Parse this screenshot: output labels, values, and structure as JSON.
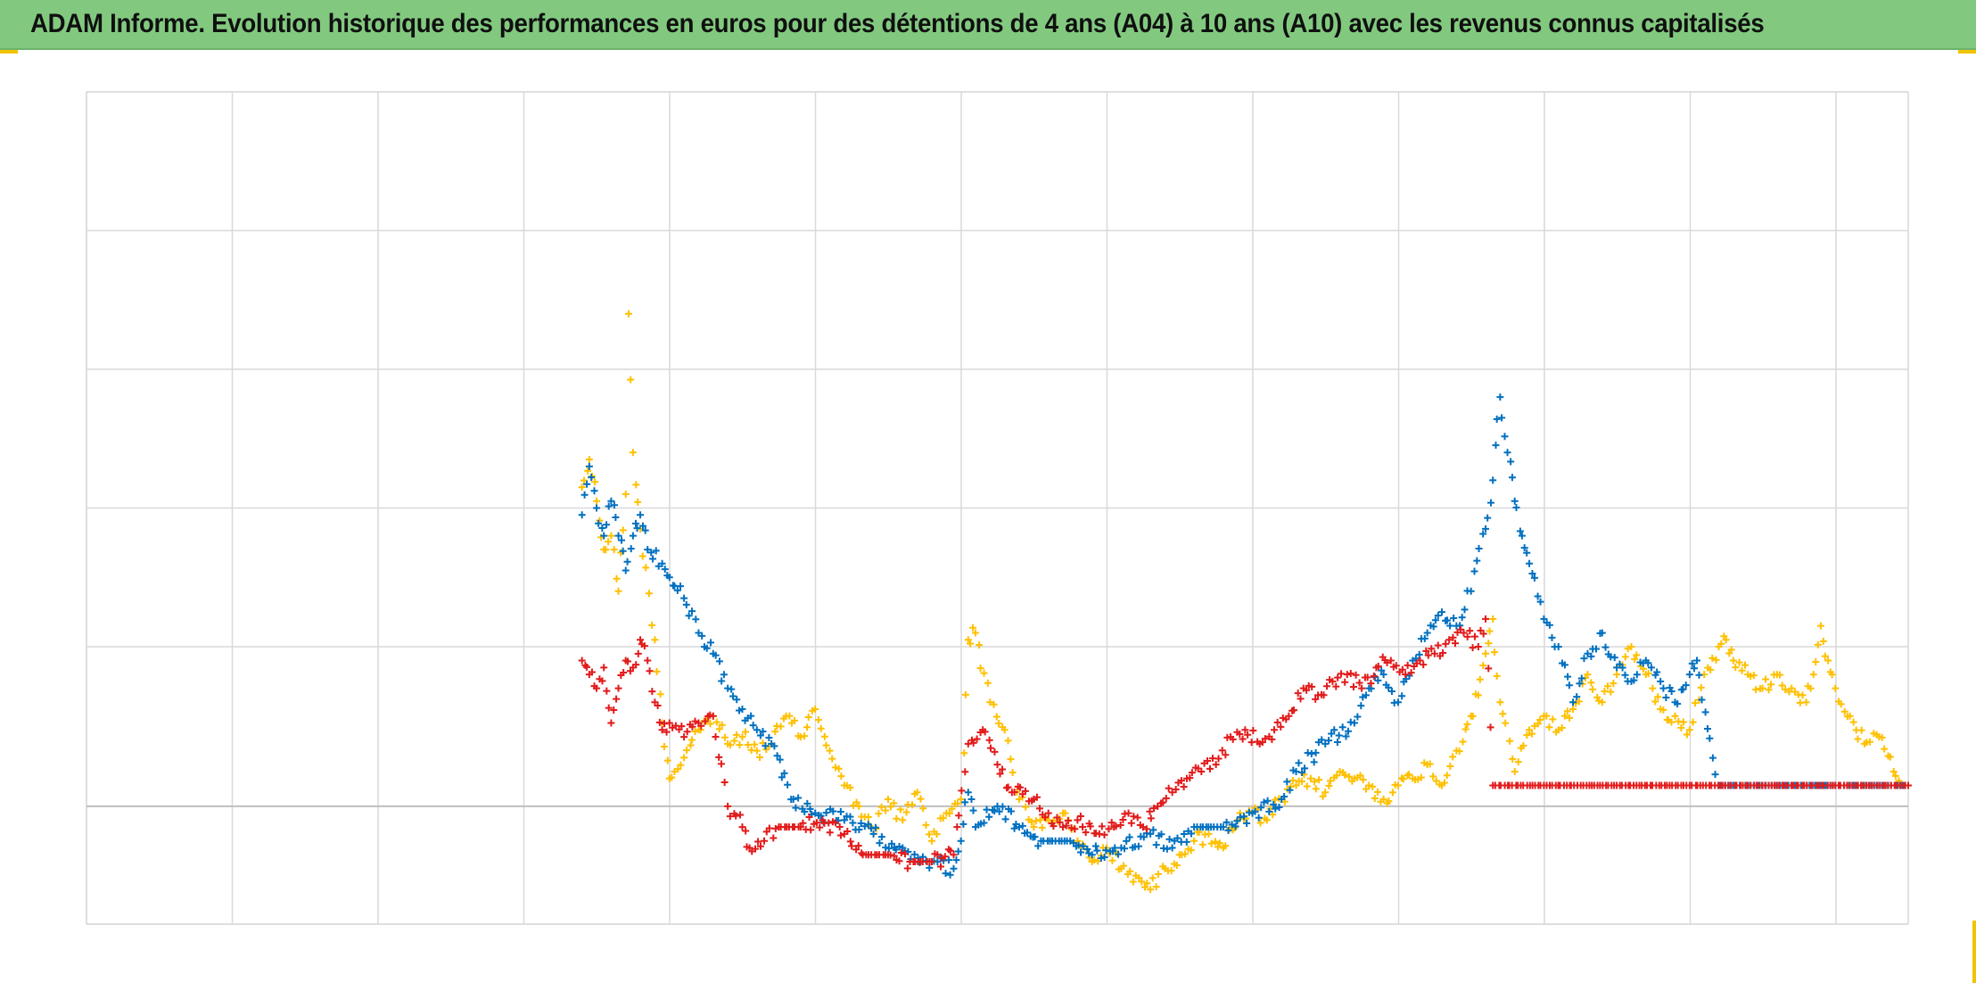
{
  "title": "ADAM Informe. Evolution historique des performances en euros pour des détentions de 4 ans (A04) à 10 ans (A10) avec les revenus connus capitalisés",
  "colors": {
    "header_bg": "#82c97f",
    "grid": "#d9d9d9",
    "axis": "#bfbfbf",
    "corner_marks": "#f2c300"
  },
  "chart_data": {
    "type": "scatter",
    "marker": "plus",
    "grid": true,
    "tick_labels_shown": false,
    "legend": "none",
    "x_gridlines": 13,
    "xlim": [
      0,
      12.5
    ],
    "y_gridlines": [
      -0.85,
      0,
      1.15,
      2.15,
      3.15,
      4.15,
      5.15
    ],
    "ylim": [
      -0.85,
      5.15
    ],
    "series": [
      {
        "color": "#0070c0",
        "points": [
          [
            3.4,
            2.1
          ],
          [
            3.45,
            2.45
          ],
          [
            3.5,
            2.15
          ],
          [
            3.55,
            1.95
          ],
          [
            3.6,
            2.2
          ],
          [
            3.65,
            1.95
          ],
          [
            3.7,
            1.7
          ],
          [
            3.75,
            1.95
          ],
          [
            3.8,
            2.1
          ],
          [
            3.85,
            1.85
          ],
          [
            3.95,
            1.75
          ],
          [
            4.0,
            1.65
          ],
          [
            4.1,
            1.5
          ],
          [
            4.2,
            1.25
          ],
          [
            4.3,
            1.1
          ],
          [
            4.4,
            0.85
          ],
          [
            4.5,
            0.7
          ],
          [
            4.6,
            0.55
          ],
          [
            4.7,
            0.45
          ],
          [
            4.85,
            0.05
          ],
          [
            5.0,
            -0.05
          ],
          [
            5.2,
            -0.1
          ],
          [
            5.4,
            -0.2
          ],
          [
            5.6,
            -0.3
          ],
          [
            5.8,
            -0.4
          ],
          [
            5.95,
            -0.45
          ],
          [
            6.0,
            -0.25
          ],
          [
            6.05,
            0.1
          ],
          [
            6.1,
            -0.15
          ],
          [
            6.25,
            0.0
          ],
          [
            6.4,
            -0.15
          ],
          [
            6.55,
            -0.25
          ],
          [
            6.75,
            -0.25
          ],
          [
            6.9,
            -0.35
          ],
          [
            7.1,
            -0.3
          ],
          [
            7.3,
            -0.2
          ],
          [
            7.45,
            -0.3
          ],
          [
            7.6,
            -0.15
          ],
          [
            7.8,
            -0.15
          ],
          [
            8.0,
            -0.05
          ],
          [
            8.2,
            0.05
          ],
          [
            8.3,
            0.25
          ],
          [
            8.5,
            0.45
          ],
          [
            8.7,
            0.6
          ],
          [
            8.8,
            0.85
          ],
          [
            8.9,
            0.95
          ],
          [
            9.0,
            0.75
          ],
          [
            9.1,
            1.05
          ],
          [
            9.2,
            1.25
          ],
          [
            9.3,
            1.4
          ],
          [
            9.4,
            1.3
          ],
          [
            9.5,
            1.55
          ],
          [
            9.6,
            2.0
          ],
          [
            9.65,
            2.35
          ],
          [
            9.7,
            2.95
          ],
          [
            9.75,
            2.55
          ],
          [
            9.8,
            2.2
          ],
          [
            9.85,
            1.95
          ],
          [
            9.9,
            1.75
          ],
          [
            10.0,
            1.35
          ],
          [
            10.1,
            1.15
          ],
          [
            10.2,
            0.75
          ],
          [
            10.3,
            1.1
          ],
          [
            10.4,
            1.25
          ],
          [
            10.5,
            1.0
          ],
          [
            10.6,
            0.9
          ],
          [
            10.7,
            1.05
          ],
          [
            10.8,
            0.9
          ],
          [
            10.9,
            0.75
          ],
          [
            11.0,
            0.95
          ],
          [
            11.05,
            1.05
          ],
          [
            11.2,
            0.15
          ],
          [
            11.6,
            0.15
          ],
          [
            12.0,
            0.15
          ],
          [
            12.5,
            0.15
          ]
        ]
      },
      {
        "color": "#ffc000",
        "points": [
          [
            3.4,
            2.3
          ],
          [
            3.45,
            2.5
          ],
          [
            3.5,
            2.2
          ],
          [
            3.55,
            1.85
          ],
          [
            3.6,
            1.95
          ],
          [
            3.65,
            1.55
          ],
          [
            3.7,
            2.25
          ],
          [
            3.72,
            3.55
          ],
          [
            3.75,
            2.55
          ],
          [
            3.8,
            2.0
          ],
          [
            3.9,
            1.2
          ],
          [
            3.95,
            0.6
          ],
          [
            4.0,
            0.2
          ],
          [
            4.1,
            0.35
          ],
          [
            4.2,
            0.55
          ],
          [
            4.3,
            0.65
          ],
          [
            4.4,
            0.45
          ],
          [
            4.5,
            0.5
          ],
          [
            4.6,
            0.4
          ],
          [
            4.7,
            0.45
          ],
          [
            4.8,
            0.65
          ],
          [
            4.9,
            0.5
          ],
          [
            5.0,
            0.7
          ],
          [
            5.1,
            0.4
          ],
          [
            5.2,
            0.15
          ],
          [
            5.3,
            0.0
          ],
          [
            5.4,
            -0.2
          ],
          [
            5.5,
            0.05
          ],
          [
            5.6,
            -0.1
          ],
          [
            5.7,
            0.1
          ],
          [
            5.8,
            -0.25
          ],
          [
            5.9,
            -0.05
          ],
          [
            6.0,
            0.05
          ],
          [
            6.05,
            1.2
          ],
          [
            6.1,
            1.25
          ],
          [
            6.2,
            0.75
          ],
          [
            6.3,
            0.55
          ],
          [
            6.4,
            0.05
          ],
          [
            6.5,
            -0.15
          ],
          [
            6.6,
            -0.1
          ],
          [
            6.7,
            -0.05
          ],
          [
            6.8,
            -0.25
          ],
          [
            6.9,
            -0.4
          ],
          [
            7.0,
            -0.3
          ],
          [
            7.1,
            -0.45
          ],
          [
            7.2,
            -0.5
          ],
          [
            7.3,
            -0.6
          ],
          [
            7.4,
            -0.45
          ],
          [
            7.5,
            -0.35
          ],
          [
            7.6,
            -0.25
          ],
          [
            7.7,
            -0.2
          ],
          [
            7.8,
            -0.3
          ],
          [
            7.9,
            -0.1
          ],
          [
            8.0,
            -0.05
          ],
          [
            8.1,
            -0.1
          ],
          [
            8.2,
            0.05
          ],
          [
            8.3,
            0.15
          ],
          [
            8.4,
            0.2
          ],
          [
            8.5,
            0.1
          ],
          [
            8.6,
            0.25
          ],
          [
            8.7,
            0.2
          ],
          [
            8.8,
            0.15
          ],
          [
            8.9,
            0.05
          ],
          [
            9.0,
            0.15
          ],
          [
            9.1,
            0.2
          ],
          [
            9.2,
            0.3
          ],
          [
            9.3,
            0.15
          ],
          [
            9.4,
            0.4
          ],
          [
            9.5,
            0.65
          ],
          [
            9.55,
            0.8
          ],
          [
            9.6,
            1.1
          ],
          [
            9.65,
            1.35
          ],
          [
            9.7,
            0.75
          ],
          [
            9.8,
            0.25
          ],
          [
            9.9,
            0.55
          ],
          [
            10.0,
            0.65
          ],
          [
            10.1,
            0.55
          ],
          [
            10.2,
            0.7
          ],
          [
            10.3,
            0.95
          ],
          [
            10.4,
            0.75
          ],
          [
            10.5,
            0.95
          ],
          [
            10.6,
            1.15
          ],
          [
            10.7,
            0.95
          ],
          [
            10.8,
            0.7
          ],
          [
            10.9,
            0.65
          ],
          [
            11.0,
            0.55
          ],
          [
            11.1,
            0.95
          ],
          [
            11.2,
            1.15
          ],
          [
            11.25,
            1.2
          ],
          [
            11.3,
            1.05
          ],
          [
            11.4,
            0.95
          ],
          [
            11.5,
            0.85
          ],
          [
            11.6,
            0.95
          ],
          [
            11.7,
            0.85
          ],
          [
            11.8,
            0.75
          ],
          [
            11.85,
            0.95
          ],
          [
            11.9,
            1.3
          ],
          [
            11.95,
            1.05
          ],
          [
            12.0,
            0.85
          ],
          [
            12.1,
            0.65
          ],
          [
            12.2,
            0.45
          ],
          [
            12.3,
            0.5
          ],
          [
            12.4,
            0.25
          ],
          [
            12.45,
            0.15
          ],
          [
            12.5,
            0.15
          ]
        ]
      },
      {
        "color": "#e21b1b",
        "points": [
          [
            3.4,
            1.05
          ],
          [
            3.45,
            0.95
          ],
          [
            3.5,
            0.85
          ],
          [
            3.55,
            1.0
          ],
          [
            3.6,
            0.6
          ],
          [
            3.65,
            0.85
          ],
          [
            3.7,
            1.05
          ],
          [
            3.75,
            1.0
          ],
          [
            3.8,
            1.2
          ],
          [
            3.85,
            1.05
          ],
          [
            3.9,
            0.75
          ],
          [
            3.95,
            0.55
          ],
          [
            4.0,
            0.6
          ],
          [
            4.1,
            0.5
          ],
          [
            4.2,
            0.6
          ],
          [
            4.3,
            0.65
          ],
          [
            4.4,
            0.0
          ],
          [
            4.5,
            -0.15
          ],
          [
            4.55,
            -0.3
          ],
          [
            4.65,
            -0.25
          ],
          [
            4.75,
            -0.15
          ],
          [
            4.9,
            -0.15
          ],
          [
            5.05,
            -0.1
          ],
          [
            5.2,
            -0.2
          ],
          [
            5.35,
            -0.35
          ],
          [
            5.5,
            -0.35
          ],
          [
            5.65,
            -0.4
          ],
          [
            5.8,
            -0.4
          ],
          [
            5.95,
            -0.35
          ],
          [
            6.05,
            0.45
          ],
          [
            6.15,
            0.55
          ],
          [
            6.25,
            0.3
          ],
          [
            6.35,
            0.1
          ],
          [
            6.5,
            0.05
          ],
          [
            6.6,
            -0.05
          ],
          [
            6.7,
            -0.15
          ],
          [
            6.8,
            -0.1
          ],
          [
            6.95,
            -0.2
          ],
          [
            7.05,
            -0.15
          ],
          [
            7.15,
            -0.05
          ],
          [
            7.25,
            -0.15
          ],
          [
            7.35,
            0.0
          ],
          [
            7.45,
            0.1
          ],
          [
            7.55,
            0.2
          ],
          [
            7.65,
            0.25
          ],
          [
            7.75,
            0.3
          ],
          [
            7.85,
            0.5
          ],
          [
            7.95,
            0.55
          ],
          [
            8.05,
            0.45
          ],
          [
            8.15,
            0.55
          ],
          [
            8.25,
            0.65
          ],
          [
            8.35,
            0.85
          ],
          [
            8.45,
            0.8
          ],
          [
            8.55,
            0.9
          ],
          [
            8.65,
            0.95
          ],
          [
            8.75,
            0.85
          ],
          [
            8.85,
            1.0
          ],
          [
            8.95,
            1.05
          ],
          [
            9.05,
            0.95
          ],
          [
            9.15,
            1.05
          ],
          [
            9.25,
            1.1
          ],
          [
            9.35,
            1.2
          ],
          [
            9.45,
            1.25
          ],
          [
            9.55,
            1.15
          ],
          [
            9.6,
            1.35
          ],
          [
            9.65,
            0.15
          ],
          [
            10.0,
            0.15
          ],
          [
            10.5,
            0.15
          ],
          [
            11.0,
            0.15
          ],
          [
            11.5,
            0.15
          ],
          [
            12.0,
            0.15
          ],
          [
            12.5,
            0.15
          ]
        ]
      }
    ]
  }
}
